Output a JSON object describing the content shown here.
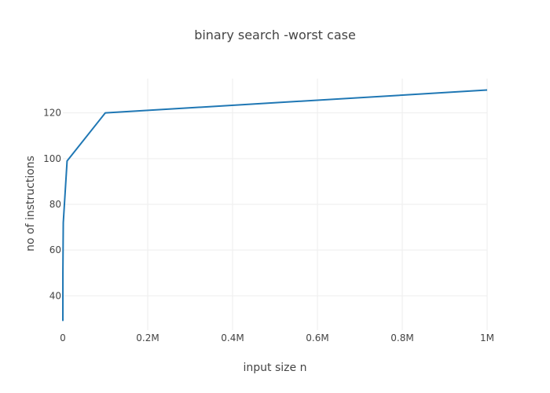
{
  "chart_data": {
    "type": "line",
    "title": "binary search -worst case",
    "xlabel": "input size n",
    "ylabel": "no of instructions",
    "xlim": [
      0,
      1000000
    ],
    "ylim": [
      25,
      135
    ],
    "x_ticks": [
      0,
      200000,
      400000,
      600000,
      800000,
      1000000
    ],
    "x_tick_labels": [
      "0",
      "0.2M",
      "0.4M",
      "0.6M",
      "0.8M",
      "1M"
    ],
    "y_ticks": [
      40,
      60,
      80,
      100,
      120
    ],
    "y_tick_labels": [
      "40",
      "60",
      "80",
      "100",
      "120"
    ],
    "grid": true,
    "legend": false,
    "series": [
      {
        "color": "#1f77b4",
        "x": [
          10,
          100,
          1000,
          10000,
          100000,
          1000000
        ],
        "y": [
          29,
          50,
          72,
          99,
          120,
          130
        ]
      }
    ]
  }
}
